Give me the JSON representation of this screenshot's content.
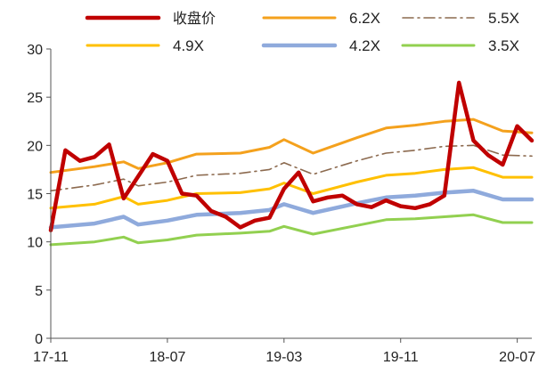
{
  "chart_data": {
    "type": "line",
    "title": "",
    "xlabel": "",
    "ylabel": "",
    "ylim": [
      0,
      30
    ],
    "yticks": [
      0,
      5,
      10,
      15,
      20,
      25,
      30
    ],
    "x_start": "17-11",
    "x_end": "20-08",
    "xtick_labels": [
      "17-11",
      "18-07",
      "19-03",
      "19-11",
      "20-07"
    ],
    "grid": false,
    "legend_position": "top",
    "colors": {
      "close": "#c00000",
      "pe62": "#f4a11d",
      "pe55": "#8c6a4f",
      "pe49": "#ffc000",
      "pe42": "#8faadc",
      "pe35": "#92d050"
    },
    "series": [
      {
        "key": "close",
        "name": "收盘价",
        "x": [
          "17-11",
          "17-12",
          "18-01",
          "18-02",
          "18-03",
          "18-04",
          "18-05",
          "18-06",
          "18-07",
          "18-08",
          "18-09",
          "18-10",
          "18-11",
          "18-12",
          "19-01",
          "19-02",
          "19-03",
          "19-04",
          "19-05",
          "19-06",
          "19-07",
          "19-08",
          "19-09",
          "19-10",
          "19-11",
          "19-12",
          "20-01",
          "20-02",
          "20-03",
          "20-04",
          "20-05",
          "20-06",
          "20-07",
          "20-08"
        ],
        "values": [
          11.2,
          19.5,
          18.4,
          18.8,
          20.1,
          14.5,
          16.8,
          19.1,
          18.4,
          15.0,
          14.8,
          13.2,
          12.6,
          11.5,
          12.2,
          12.5,
          15.5,
          17.2,
          14.2,
          14.6,
          14.8,
          13.9,
          13.6,
          14.3,
          13.7,
          13.5,
          13.9,
          14.8,
          26.5,
          20.5,
          19.0,
          18.0,
          22.0,
          20.5
        ]
      },
      {
        "key": "pe62",
        "name": "6.2X",
        "x": [
          "17-11",
          "18-02",
          "18-04",
          "18-05",
          "18-07",
          "18-09",
          "18-12",
          "19-02",
          "19-03",
          "19-05",
          "19-08",
          "19-10",
          "19-12",
          "20-02",
          "20-04",
          "20-06",
          "20-08"
        ],
        "values": [
          17.2,
          17.8,
          18.3,
          17.6,
          18.2,
          19.1,
          19.2,
          19.8,
          20.6,
          19.2,
          20.8,
          21.8,
          22.1,
          22.5,
          22.7,
          21.5,
          21.3
        ]
      },
      {
        "key": "pe55",
        "name": "5.5X",
        "x": [
          "17-11",
          "18-02",
          "18-04",
          "18-05",
          "18-07",
          "18-09",
          "18-12",
          "19-02",
          "19-03",
          "19-05",
          "19-08",
          "19-10",
          "19-12",
          "20-02",
          "20-04",
          "20-06",
          "20-08"
        ],
        "values": [
          15.3,
          15.9,
          16.5,
          15.8,
          16.2,
          16.9,
          17.1,
          17.5,
          18.2,
          17.0,
          18.4,
          19.2,
          19.5,
          19.9,
          20.0,
          19.0,
          18.9
        ]
      },
      {
        "key": "pe49",
        "name": "4.9X",
        "x": [
          "17-11",
          "18-02",
          "18-04",
          "18-05",
          "18-07",
          "18-09",
          "18-12",
          "19-02",
          "19-03",
          "19-05",
          "19-08",
          "19-10",
          "19-12",
          "20-02",
          "20-04",
          "20-06",
          "20-08"
        ],
        "values": [
          13.5,
          13.9,
          14.7,
          13.9,
          14.3,
          15.0,
          15.1,
          15.5,
          16.1,
          15.0,
          16.2,
          16.9,
          17.1,
          17.5,
          17.7,
          16.7,
          16.7
        ]
      },
      {
        "key": "pe42",
        "name": "4.2X",
        "x": [
          "17-11",
          "18-02",
          "18-04",
          "18-05",
          "18-07",
          "18-09",
          "18-12",
          "19-02",
          "19-03",
          "19-05",
          "19-08",
          "19-10",
          "19-12",
          "20-02",
          "20-04",
          "20-06",
          "20-08"
        ],
        "values": [
          11.5,
          11.9,
          12.6,
          11.8,
          12.2,
          12.8,
          13.0,
          13.3,
          13.9,
          13.0,
          14.0,
          14.6,
          14.8,
          15.1,
          15.3,
          14.4,
          14.4
        ]
      },
      {
        "key": "pe35",
        "name": "3.5X",
        "x": [
          "17-11",
          "18-02",
          "18-04",
          "18-05",
          "18-07",
          "18-09",
          "18-12",
          "19-02",
          "19-03",
          "19-05",
          "19-08",
          "19-10",
          "19-12",
          "20-02",
          "20-04",
          "20-06",
          "20-08"
        ],
        "values": [
          9.7,
          10.0,
          10.5,
          9.9,
          10.2,
          10.7,
          10.9,
          11.1,
          11.6,
          10.8,
          11.7,
          12.3,
          12.4,
          12.6,
          12.8,
          12.0,
          12.0
        ]
      }
    ]
  }
}
